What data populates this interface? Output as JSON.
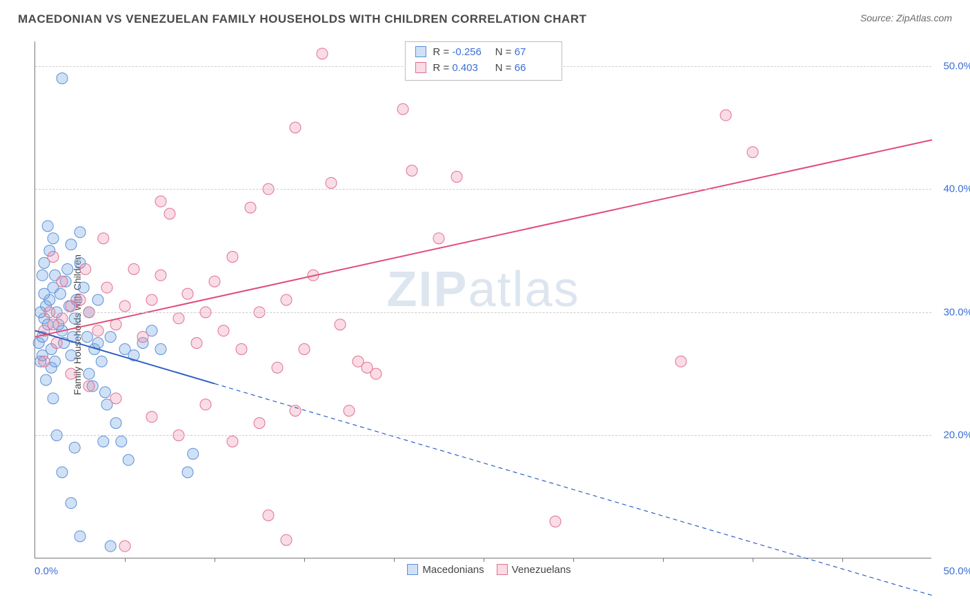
{
  "header": {
    "title": "MACEDONIAN VS VENEZUELAN FAMILY HOUSEHOLDS WITH CHILDREN CORRELATION CHART",
    "source_prefix": "Source: ",
    "source_name": "ZipAtlas.com"
  },
  "chart": {
    "type": "scatter",
    "y_axis_label": "Family Households with Children",
    "xlim": [
      0,
      50
    ],
    "ylim": [
      10,
      52
    ],
    "x_tick_step": 5,
    "x_min_label": "0.0%",
    "x_max_label": "50.0%",
    "y_ticks": [
      20,
      30,
      40,
      50
    ],
    "y_tick_labels": [
      "20.0%",
      "30.0%",
      "40.0%",
      "50.0%"
    ],
    "background_color": "#ffffff",
    "grid_color": "#cccccc",
    "axis_color": "#777777",
    "tick_label_color": "#3b6fd6",
    "watermark_text_bold": "ZIP",
    "watermark_text_rest": "atlas",
    "watermark_color": "rgba(120,150,190,0.25)",
    "series": [
      {
        "name": "Macedonians",
        "marker_fill": "rgba(120,170,230,0.35)",
        "marker_stroke": "#5a8fd6",
        "marker_radius": 8,
        "line_color": "#2d5fc4",
        "line_width": 2,
        "line_solid_xmax": 10,
        "trend": {
          "x1": 0,
          "y1": 28.5,
          "x2": 50,
          "y2": 7.0
        },
        "R": "-0.256",
        "N": "67",
        "points": [
          [
            0.2,
            27.5
          ],
          [
            0.3,
            26.0
          ],
          [
            0.5,
            29.5
          ],
          [
            0.6,
            30.5
          ],
          [
            0.8,
            31.0
          ],
          [
            0.4,
            28.0
          ],
          [
            0.9,
            27.0
          ],
          [
            1.0,
            32.0
          ],
          [
            1.1,
            33.0
          ],
          [
            1.2,
            30.0
          ],
          [
            1.3,
            29.0
          ],
          [
            1.4,
            31.5
          ],
          [
            1.5,
            28.5
          ],
          [
            1.6,
            27.5
          ],
          [
            1.7,
            32.5
          ],
          [
            1.8,
            33.5
          ],
          [
            1.9,
            30.5
          ],
          [
            2.0,
            26.5
          ],
          [
            2.1,
            28.0
          ],
          [
            2.2,
            29.5
          ],
          [
            2.3,
            31.0
          ],
          [
            2.5,
            34.0
          ],
          [
            2.7,
            32.0
          ],
          [
            2.9,
            28.0
          ],
          [
            3.0,
            25.0
          ],
          [
            3.2,
            24.0
          ],
          [
            3.3,
            27.0
          ],
          [
            3.5,
            27.5
          ],
          [
            3.7,
            26.0
          ],
          [
            3.9,
            23.5
          ],
          [
            2.0,
            35.5
          ],
          [
            2.5,
            36.5
          ],
          [
            0.7,
            37.0
          ],
          [
            0.5,
            34.0
          ],
          [
            0.8,
            35.0
          ],
          [
            1.0,
            36.0
          ],
          [
            1.5,
            49.0
          ],
          [
            0.4,
            33.0
          ],
          [
            4.0,
            22.5
          ],
          [
            4.5,
            21.0
          ],
          [
            4.8,
            19.5
          ],
          [
            5.2,
            18.0
          ],
          [
            4.2,
            28.0
          ],
          [
            5.0,
            27.0
          ],
          [
            5.5,
            26.5
          ],
          [
            6.0,
            27.5
          ],
          [
            6.5,
            28.5
          ],
          [
            7.0,
            27.0
          ],
          [
            3.0,
            30.0
          ],
          [
            3.5,
            31.0
          ],
          [
            1.2,
            20.0
          ],
          [
            1.5,
            17.0
          ],
          [
            2.0,
            14.5
          ],
          [
            2.5,
            11.8
          ],
          [
            2.2,
            19.0
          ],
          [
            3.8,
            19.5
          ],
          [
            4.2,
            11.0
          ],
          [
            8.5,
            17.0
          ],
          [
            8.8,
            18.5
          ],
          [
            1.0,
            23.0
          ],
          [
            0.6,
            24.5
          ],
          [
            0.9,
            25.5
          ],
          [
            0.3,
            30.0
          ],
          [
            0.5,
            31.5
          ],
          [
            0.7,
            29.0
          ],
          [
            1.1,
            26.0
          ],
          [
            0.4,
            26.5
          ]
        ]
      },
      {
        "name": "Venezuelans",
        "marker_fill": "rgba(235,140,170,0.30)",
        "marker_stroke": "#e0708f",
        "marker_radius": 8,
        "line_color": "#e14b7a",
        "line_width": 2,
        "line_solid_xmax": 50,
        "trend": {
          "x1": 0,
          "y1": 28.0,
          "x2": 50,
          "y2": 44.0
        },
        "R": "0.403",
        "N": "66",
        "points": [
          [
            0.5,
            28.5
          ],
          [
            1.0,
            29.0
          ],
          [
            1.5,
            29.5
          ],
          [
            2.0,
            30.5
          ],
          [
            2.5,
            31.0
          ],
          [
            3.0,
            30.0
          ],
          [
            3.5,
            28.5
          ],
          [
            4.0,
            32.0
          ],
          [
            4.5,
            29.0
          ],
          [
            5.0,
            30.5
          ],
          [
            5.5,
            33.5
          ],
          [
            6.0,
            28.0
          ],
          [
            6.5,
            31.0
          ],
          [
            7.0,
            33.0
          ],
          [
            7.5,
            38.0
          ],
          [
            8.0,
            29.5
          ],
          [
            8.5,
            31.5
          ],
          [
            9.0,
            27.5
          ],
          [
            9.5,
            30.0
          ],
          [
            10.0,
            32.5
          ],
          [
            10.5,
            28.5
          ],
          [
            11.0,
            34.5
          ],
          [
            11.5,
            27.0
          ],
          [
            12.0,
            38.5
          ],
          [
            12.5,
            30.0
          ],
          [
            13.0,
            40.0
          ],
          [
            13.5,
            25.5
          ],
          [
            14.0,
            31.0
          ],
          [
            14.5,
            45.0
          ],
          [
            15.0,
            27.0
          ],
          [
            15.5,
            33.0
          ],
          [
            16.0,
            51.0
          ],
          [
            16.5,
            40.5
          ],
          [
            17.0,
            29.0
          ],
          [
            17.5,
            22.0
          ],
          [
            18.0,
            26.0
          ],
          [
            19.0,
            25.0
          ],
          [
            20.5,
            46.5
          ],
          [
            21.0,
            41.5
          ],
          [
            22.5,
            36.0
          ],
          [
            23.5,
            41.0
          ],
          [
            7.0,
            39.0
          ],
          [
            1.0,
            34.5
          ],
          [
            1.5,
            32.5
          ],
          [
            0.8,
            30.0
          ],
          [
            0.5,
            26.0
          ],
          [
            1.2,
            27.5
          ],
          [
            2.0,
            25.0
          ],
          [
            3.0,
            24.0
          ],
          [
            4.5,
            23.0
          ],
          [
            6.5,
            21.5
          ],
          [
            8.0,
            20.0
          ],
          [
            9.5,
            22.5
          ],
          [
            11.0,
            19.5
          ],
          [
            12.5,
            21.0
          ],
          [
            13.0,
            13.5
          ],
          [
            14.0,
            11.5
          ],
          [
            14.5,
            22.0
          ],
          [
            18.5,
            25.5
          ],
          [
            29.0,
            13.0
          ],
          [
            36.0,
            26.0
          ],
          [
            38.5,
            46.0
          ],
          [
            40.0,
            43.0
          ],
          [
            5.0,
            11.0
          ],
          [
            2.8,
            33.5
          ],
          [
            3.8,
            36.0
          ]
        ]
      }
    ],
    "bottom_legend": [
      {
        "label": "Macedonians",
        "fill": "rgba(120,170,230,0.35)",
        "stroke": "#5a8fd6"
      },
      {
        "label": "Venezuelans",
        "fill": "rgba(235,140,170,0.30)",
        "stroke": "#e0708f"
      }
    ],
    "stats_box": {
      "R_label": "R =",
      "N_label": "N ="
    }
  }
}
